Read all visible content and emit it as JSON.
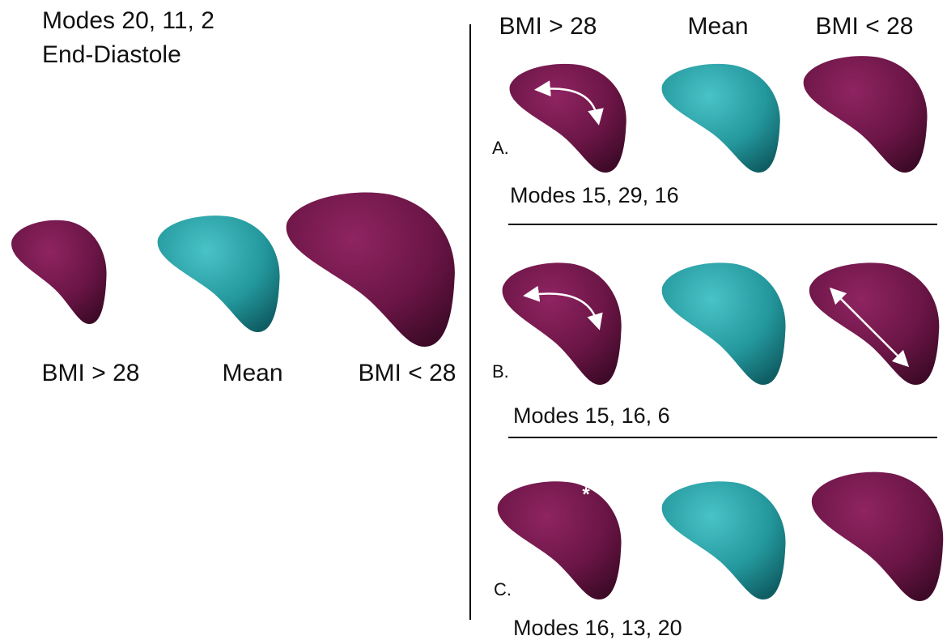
{
  "left": {
    "title_lines": [
      "Modes 20, 11, 2",
      "End-Diastole"
    ],
    "labels": [
      "BMI > 28",
      "Mean",
      "BMI < 28"
    ]
  },
  "right": {
    "headers": [
      "BMI > 28",
      "Mean",
      "BMI < 28"
    ],
    "rows": [
      {
        "letter": "A.",
        "caption": "Modes 15, 29, 16"
      },
      {
        "letter": "B.",
        "caption": "Modes 15, 16, 6"
      },
      {
        "letter": "C.",
        "caption": "Modes 16, 13, 20"
      }
    ],
    "annotation": "*"
  }
}
